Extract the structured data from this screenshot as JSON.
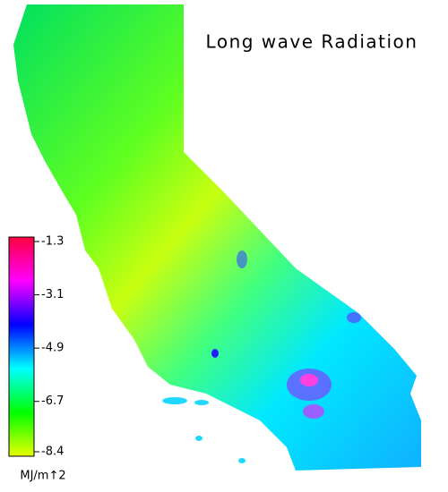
{
  "map": {
    "title": "Long wave Radiation",
    "colorbar": {
      "lim": [
        -8.4,
        -1.3
      ],
      "ticks": [
        -1.3,
        -3.1,
        -4.9,
        -6.7,
        -8.4
      ],
      "unit": "MJ/m↑2",
      "colors": [
        "#e8ff00",
        "#00ff00",
        "#00ffff",
        "#0000ff",
        "#ff00ff",
        "#ff0040"
      ]
    }
  }
}
